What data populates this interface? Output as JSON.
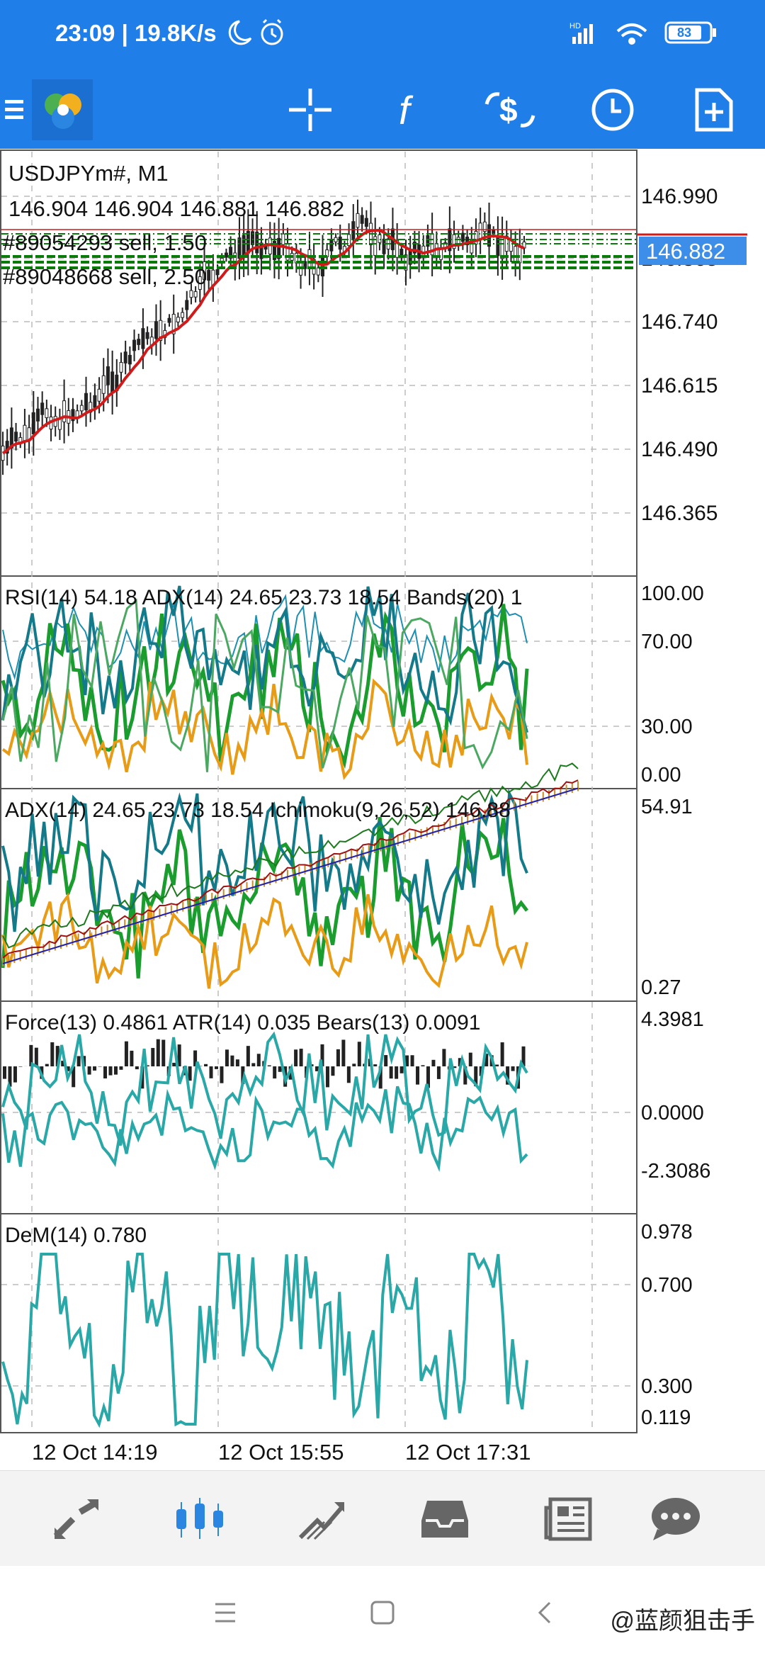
{
  "status_bar": {
    "time_speed": "23:09 | 19.8K/s",
    "network": "HD",
    "battery": "83"
  },
  "toolbar": {
    "icons": [
      "menu-icon",
      "metatrader-logo",
      "crosshair-icon",
      "function-icon",
      "currency-icon",
      "clock-icon",
      "add-document-icon"
    ]
  },
  "chart": {
    "symbol": "USDJPYm#, M1",
    "ohlc": "146.904 146.904 146.881 146.882",
    "order1": "#89054293 sell, 1.50",
    "order2": "#89048668 sell, 2.50",
    "current_price": "146.882",
    "price_ticks": [
      "146.990",
      "146.865",
      "146.740",
      "146.615",
      "146.490",
      "146.365"
    ],
    "colors": {
      "accent": "#1f7ee8",
      "price_box": "#3d8ee8",
      "ma": "#d11a1a",
      "order": "#0a7a0a"
    }
  },
  "panels": [
    {
      "label": "RSI(14) 54.18 ADX(14) 24.65 23.73 18.54 Bands(20) 1",
      "scale": [
        "100.00",
        "70.00",
        "30.00",
        "0.00"
      ]
    },
    {
      "label": "ADX(14) 24.65 23.73 18.54 Ichimoku(9,26,52) 146.88",
      "scale": [
        "54.91",
        "0.27"
      ]
    },
    {
      "label": "Force(13) 0.4861 ATR(14) 0.035 Bears(13) 0.0091",
      "scale": [
        "4.3981",
        "0.0000",
        "-2.3086"
      ]
    },
    {
      "label": "DeM(14) 0.780",
      "scale": [
        "0.978",
        "0.700",
        "0.300",
        "0.119"
      ]
    }
  ],
  "time_axis": [
    "12 Oct 14:19",
    "12 Oct 15:55",
    "12 Oct 17:31"
  ],
  "bottom_nav": {
    "items": [
      "quotes-icon",
      "chart-icon",
      "trade-icon",
      "history-icon",
      "news-icon",
      "messages-icon"
    ]
  },
  "watermark": "@蓝颜狙击手"
}
